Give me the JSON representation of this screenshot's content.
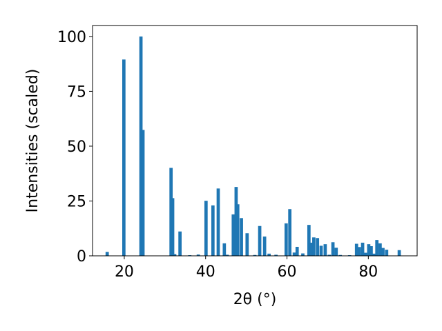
{
  "chart_data": {
    "type": "bar",
    "title": "",
    "xlabel": "2θ (°)",
    "ylabel": "Intensities (scaled)",
    "xlim": [
      12.2,
      92.0
    ],
    "ylim": [
      0,
      105
    ],
    "xticks": [
      20,
      40,
      60,
      80
    ],
    "yticks": [
      0,
      25,
      50,
      75,
      100
    ],
    "grid": false,
    "legend": "none",
    "color": "#1f77b4",
    "bar_width": 0.8,
    "x": [
      15.8,
      19.9,
      24.1,
      24.6,
      31.5,
      31.9,
      32.4,
      33.7,
      36.1,
      38.2,
      40.1,
      41.8,
      43.1,
      44.6,
      45.3,
      46.8,
      47.5,
      47.9,
      48.8,
      50.2,
      52.1,
      53.3,
      54.5,
      55.6,
      57.3,
      59.8,
      60.7,
      61.8,
      62.5,
      63.9,
      65.4,
      66.0,
      66.6,
      67.5,
      68.4,
      69.4,
      70.4,
      71.3,
      72.1,
      73.1,
      75.4,
      77.1,
      77.8,
      78.6,
      79.3,
      80.1,
      80.7,
      81.4,
      82.1,
      82.9,
      83.6,
      84.5,
      87.6
    ],
    "values": [
      1.8,
      89.5,
      100,
      57.4,
      40.1,
      26.3,
      0.8,
      11.1,
      0.3,
      0.6,
      25.1,
      23.0,
      30.7,
      5.7,
      0.5,
      18.9,
      31.4,
      23.5,
      17.2,
      10.3,
      0.4,
      13.6,
      8.8,
      1.0,
      0.5,
      14.8,
      21.3,
      1.5,
      4.1,
      1.1,
      14.1,
      6.0,
      8.4,
      8.1,
      4.6,
      5.3,
      0.5,
      6.2,
      3.7,
      0.4,
      0.3,
      5.5,
      4.0,
      6.0,
      1.4,
      5.3,
      4.4,
      1.0,
      7.2,
      5.7,
      3.6,
      2.8,
      2.6
    ]
  }
}
